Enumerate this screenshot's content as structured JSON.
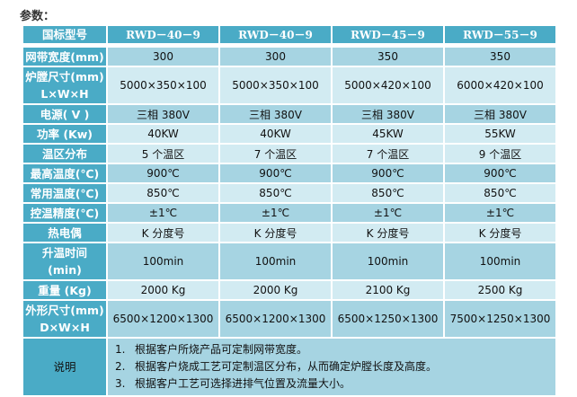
{
  "title": "参数：",
  "header": {
    "label": "国标型号",
    "models": [
      "RWD－40－9",
      "RWD－40－9",
      "RWD－45－9",
      "RWD－55－9"
    ]
  },
  "rows": [
    {
      "label": [
        "网带宽度(mm)"
      ],
      "values": [
        "300",
        "300",
        "350",
        "350"
      ],
      "shade": "dark"
    },
    {
      "label": [
        "炉膛尺寸(mm)",
        "L×W×H"
      ],
      "values": [
        "5000×350×100",
        "5000×350×100",
        "5000×420×100",
        "6000×420×100"
      ],
      "shade": "light"
    },
    {
      "label": [
        "电源( V )"
      ],
      "values": [
        "三相 380V",
        "三相 380V",
        "三相 380V",
        "三相 380V"
      ],
      "shade": "dark"
    },
    {
      "label": [
        "功率 (Kw)"
      ],
      "values": [
        "40KW",
        "40KW",
        "45KW",
        "55KW"
      ],
      "shade": "light"
    },
    {
      "label": [
        "温区分布"
      ],
      "values": [
        "5 个温区",
        "7 个温区",
        "7 个温区",
        "9 个温区"
      ],
      "shade": "light"
    },
    {
      "label": [
        "最高温度(℃)"
      ],
      "values": [
        "900℃",
        "900℃",
        "900℃",
        "900℃"
      ],
      "shade": "dark"
    },
    {
      "label": [
        "常用温度(℃)"
      ],
      "values": [
        "850℃",
        "850℃",
        "850℃",
        "850℃"
      ],
      "shade": "light"
    },
    {
      "label": [
        "控温精度(℃)"
      ],
      "values": [
        "±1℃",
        "±1℃",
        "±1℃",
        "±1℃"
      ],
      "shade": "dark"
    },
    {
      "label": [
        "热电偶"
      ],
      "values": [
        "K 分度号",
        "K 分度号",
        "K 分度号",
        "K 分度号"
      ],
      "shade": "light"
    },
    {
      "label": [
        "升温时间",
        "(min)"
      ],
      "values": [
        "100min",
        "100min",
        "100min",
        "100min"
      ],
      "shade": "dark"
    },
    {
      "label": [
        "重量 (Kg)"
      ],
      "values": [
        "2000 Kg",
        "2000 Kg",
        "2100 Kg",
        "2500 Kg"
      ],
      "shade": "light"
    },
    {
      "label": [
        "外形尺寸(mm)",
        "D×W×H"
      ],
      "values": [
        "6500×1200×1300",
        "6500×1200×1300",
        "6500×1250×1300",
        "7500×1250×1300"
      ],
      "shade": "dark"
    }
  ],
  "notes": {
    "label": "说明",
    "items": [
      {
        "num": "1.",
        "text": "根据客户所烧产品可定制网带宽度。"
      },
      {
        "num": "2.",
        "text": "根据客户烧成工艺可定制温区分布，从而确定炉膛长度及高度。"
      },
      {
        "num": "3.",
        "text": "根据客户工艺可选择进排气位置及流量大小。"
      }
    ]
  }
}
